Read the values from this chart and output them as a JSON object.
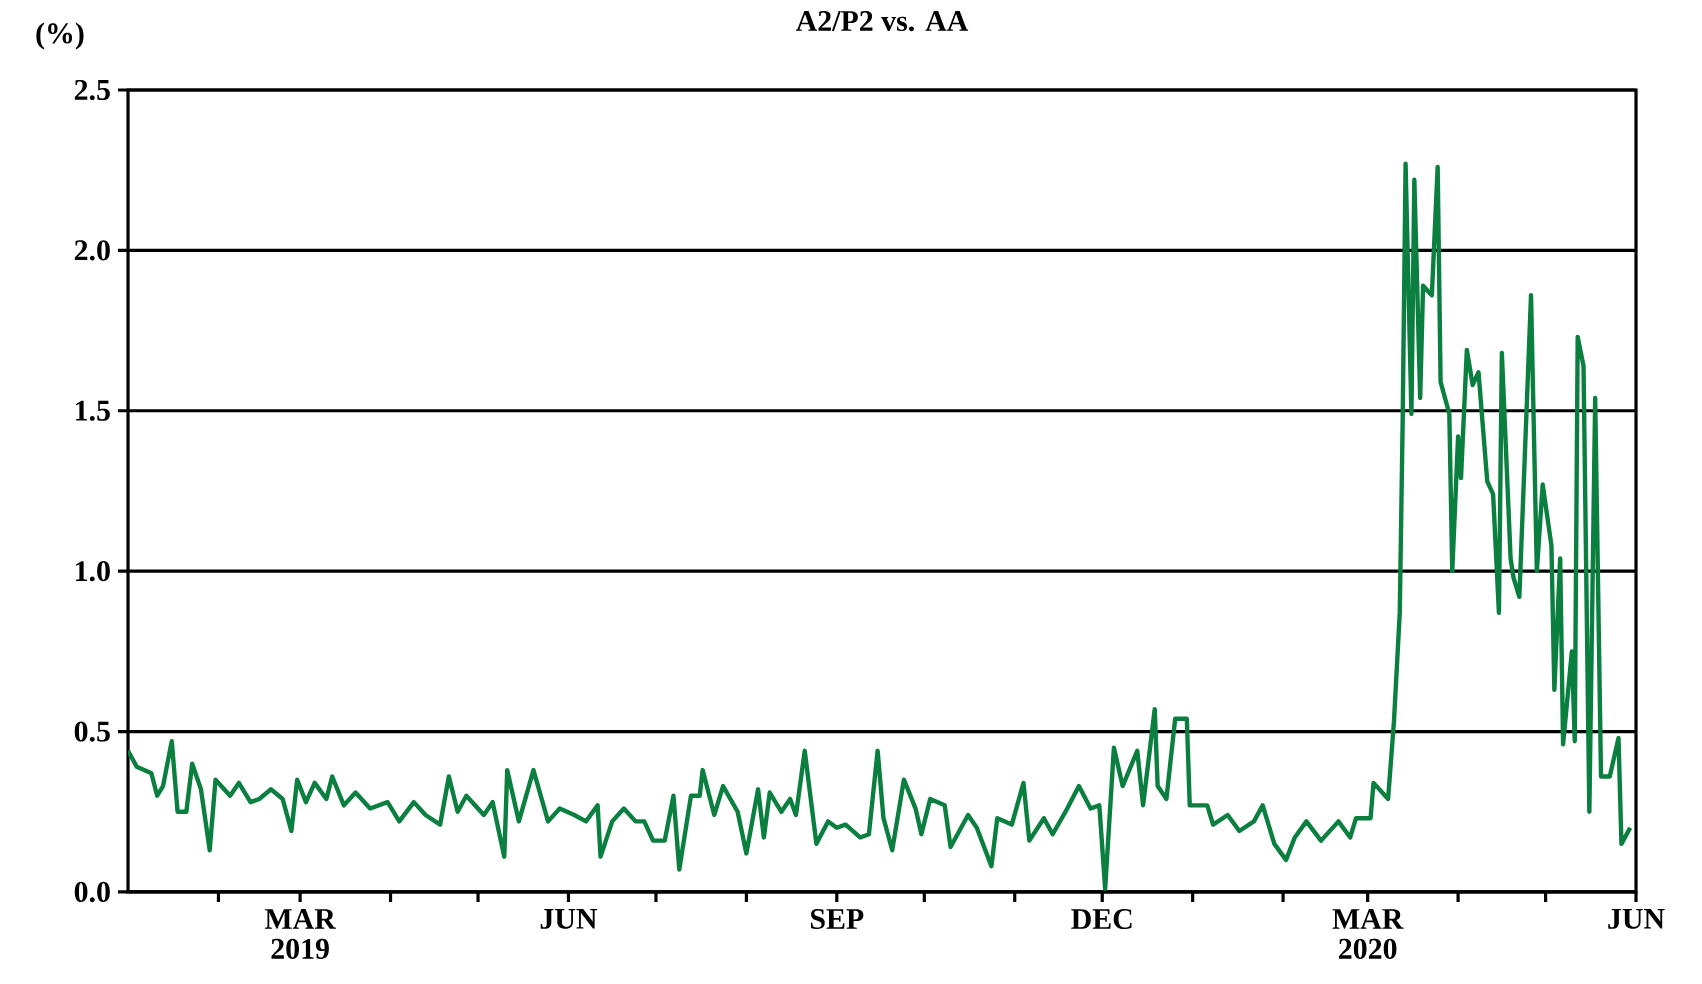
{
  "chart_data": {
    "type": "line",
    "title": "A2/P2 vs. AA",
    "ylabel": "(%)",
    "xlim": [
      "2019-01-01",
      "2020-06-01"
    ],
    "xticks": [
      {
        "value": "2019-02-01",
        "label": null
      },
      {
        "value": "2019-03-01",
        "label": "MAR 2019"
      },
      {
        "value": "2019-04-01",
        "label": null
      },
      {
        "value": "2019-05-01",
        "label": null
      },
      {
        "value": "2019-06-01",
        "label": "JUN"
      },
      {
        "value": "2019-07-01",
        "label": null
      },
      {
        "value": "2019-08-01",
        "label": null
      },
      {
        "value": "2019-09-01",
        "label": "SEP"
      },
      {
        "value": "2019-10-01",
        "label": null
      },
      {
        "value": "2019-11-01",
        "label": null
      },
      {
        "value": "2019-12-01",
        "label": "DEC"
      },
      {
        "value": "2020-01-01",
        "label": null
      },
      {
        "value": "2020-02-01",
        "label": null
      },
      {
        "value": "2020-03-01",
        "label": "MAR 2020"
      },
      {
        "value": "2020-04-01",
        "label": null
      },
      {
        "value": "2020-05-01",
        "label": null
      },
      {
        "value": "2020-06-01",
        "label": "JUN"
      }
    ],
    "ylim": [
      0,
      2.5
    ],
    "yticks": [
      {
        "value": 0,
        "label": "0.0"
      },
      {
        "value": 0.5,
        "label": "0.5"
      },
      {
        "value": 1,
        "label": "1.0"
      },
      {
        "value": 1.5,
        "label": "1.5"
      },
      {
        "value": 2,
        "label": "2.0"
      },
      {
        "value": 2.5,
        "label": "2.5"
      }
    ],
    "grid": "y",
    "legend": false,
    "marker": "none",
    "line_style": "solid",
    "series": [
      {
        "color": "#0a7f3f",
        "x": [
          "2019-01-01",
          "2019-01-04",
          "2019-01-09",
          "2019-01-11",
          "2019-01-13",
          "2019-01-16",
          "2019-01-18",
          "2019-01-21",
          "2019-01-23",
          "2019-01-26",
          "2019-01-29",
          "2019-01-31",
          "2019-02-05",
          "2019-02-08",
          "2019-02-12",
          "2019-02-15",
          "2019-02-19",
          "2019-02-23",
          "2019-02-26",
          "2019-02-28",
          "2019-03-03",
          "2019-03-06",
          "2019-03-10",
          "2019-03-12",
          "2019-03-16",
          "2019-03-20",
          "2019-03-25",
          "2019-03-31",
          "2019-04-04",
          "2019-04-09",
          "2019-04-13",
          "2019-04-18",
          "2019-04-21",
          "2019-04-24",
          "2019-04-27",
          "2019-05-03",
          "2019-05-06",
          "2019-05-10",
          "2019-05-11",
          "2019-05-15",
          "2019-05-20",
          "2019-05-25",
          "2019-05-29",
          "2019-06-03",
          "2019-06-07",
          "2019-06-11",
          "2019-06-12",
          "2019-06-16",
          "2019-06-20",
          "2019-06-24",
          "2019-06-27",
          "2019-06-30",
          "2019-07-04",
          "2019-07-07",
          "2019-07-09",
          "2019-07-13",
          "2019-07-16",
          "2019-07-17",
          "2019-07-21",
          "2019-07-24",
          "2019-07-29",
          "2019-08-01",
          "2019-08-05",
          "2019-08-07",
          "2019-08-09",
          "2019-08-13",
          "2019-08-16",
          "2019-08-18",
          "2019-08-21",
          "2019-08-25",
          "2019-08-29",
          "2019-09-01",
          "2019-09-04",
          "2019-09-09",
          "2019-09-12",
          "2019-09-15",
          "2019-09-17",
          "2019-09-20",
          "2019-09-24",
          "2019-09-28",
          "2019-09-30",
          "2019-10-03",
          "2019-10-08",
          "2019-10-10",
          "2019-10-16",
          "2019-10-19",
          "2019-10-24",
          "2019-10-26",
          "2019-10-31",
          "2019-11-04",
          "2019-11-06",
          "2019-11-11",
          "2019-11-14",
          "2019-11-19",
          "2019-11-23",
          "2019-11-27",
          "2019-11-30",
          "2019-12-02",
          "2019-12-05",
          "2019-12-08",
          "2019-12-13",
          "2019-12-15",
          "2019-12-19",
          "2019-12-20",
          "2019-12-23",
          "2019-12-26",
          "2019-12-30",
          "2019-12-31",
          "2020-01-06",
          "2020-01-08",
          "2020-01-13",
          "2020-01-17",
          "2020-01-22",
          "2020-01-25",
          "2020-01-29",
          "2020-02-02",
          "2020-02-05",
          "2020-02-09",
          "2020-02-14",
          "2020-02-20",
          "2020-02-24",
          "2020-02-26",
          "2020-03-02",
          "2020-03-03",
          "2020-03-08",
          "2020-03-10",
          "2020-03-12",
          "2020-03-13",
          "2020-03-14",
          "2020-03-16",
          "2020-03-17",
          "2020-03-19",
          "2020-03-20",
          "2020-03-23",
          "2020-03-25",
          "2020-03-26",
          "2020-03-29",
          "2020-03-30",
          "2020-04-01",
          "2020-04-02",
          "2020-04-04",
          "2020-04-06",
          "2020-04-08",
          "2020-04-11",
          "2020-04-13",
          "2020-04-15",
          "2020-04-16",
          "2020-04-19",
          "2020-04-20",
          "2020-04-22",
          "2020-04-26",
          "2020-04-28",
          "2020-04-30",
          "2020-05-03",
          "2020-05-04",
          "2020-05-06",
          "2020-05-07",
          "2020-05-10",
          "2020-05-11",
          "2020-05-12",
          "2020-05-14",
          "2020-05-16",
          "2020-05-18",
          "2020-05-20",
          "2020-05-23",
          "2020-05-26",
          "2020-05-27",
          "2020-05-30"
        ],
        "values": [
          0.44,
          0.39,
          0.37,
          0.3,
          0.33,
          0.47,
          0.25,
          0.25,
          0.4,
          0.32,
          0.13,
          0.35,
          0.3,
          0.34,
          0.28,
          0.29,
          0.32,
          0.29,
          0.19,
          0.35,
          0.28,
          0.34,
          0.29,
          0.36,
          0.27,
          0.31,
          0.26,
          0.28,
          0.22,
          0.28,
          0.24,
          0.21,
          0.36,
          0.25,
          0.3,
          0.24,
          0.28,
          0.11,
          0.38,
          0.22,
          0.38,
          0.22,
          0.26,
          0.24,
          0.22,
          0.27,
          0.11,
          0.22,
          0.26,
          0.22,
          0.22,
          0.16,
          0.16,
          0.3,
          0.07,
          0.3,
          0.3,
          0.38,
          0.24,
          0.33,
          0.25,
          0.12,
          0.32,
          0.17,
          0.31,
          0.25,
          0.29,
          0.24,
          0.44,
          0.15,
          0.22,
          0.2,
          0.21,
          0.17,
          0.18,
          0.44,
          0.23,
          0.13,
          0.35,
          0.26,
          0.18,
          0.29,
          0.27,
          0.14,
          0.24,
          0.2,
          0.08,
          0.23,
          0.21,
          0.34,
          0.16,
          0.23,
          0.18,
          0.26,
          0.33,
          0.26,
          0.27,
          0.01,
          0.45,
          0.33,
          0.44,
          0.27,
          0.57,
          0.33,
          0.29,
          0.54,
          0.54,
          0.27,
          0.27,
          0.21,
          0.24,
          0.19,
          0.22,
          0.27,
          0.15,
          0.1,
          0.17,
          0.22,
          0.16,
          0.22,
          0.17,
          0.23,
          0.23,
          0.34,
          0.29,
          0.53,
          0.87,
          1.47,
          2.27,
          1.49,
          2.22,
          1.54,
          1.89,
          1.86,
          2.26,
          1.59,
          1.49,
          1.0,
          1.42,
          1.29,
          1.69,
          1.58,
          1.62,
          1.28,
          1.24,
          0.87,
          1.68,
          1.04,
          0.98,
          0.92,
          1.86,
          1.0,
          1.27,
          1.08,
          0.63,
          1.04,
          0.46,
          0.75,
          0.47,
          1.73,
          1.64,
          0.25,
          1.54,
          0.36,
          0.36,
          0.48,
          0.15,
          0.2
        ]
      }
    ]
  }
}
